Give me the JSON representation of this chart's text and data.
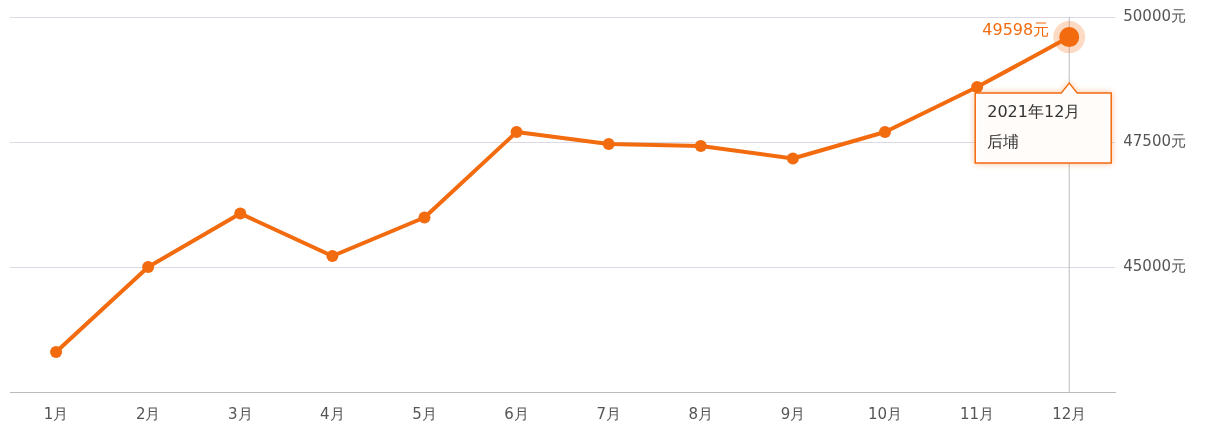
{
  "chart_data": {
    "type": "line",
    "categories": [
      "1月",
      "2月",
      "3月",
      "4月",
      "5月",
      "6月",
      "7月",
      "8月",
      "9月",
      "10月",
      "11月",
      "12月"
    ],
    "series": [
      {
        "name": "后埔",
        "color": "#f26b0f",
        "values": [
          43300,
          45000,
          46070,
          45220,
          45990,
          47700,
          47460,
          47420,
          47170,
          47700,
          48600,
          49598
        ],
        "value_labels": [
          null,
          null,
          null,
          null,
          null,
          null,
          null,
          null,
          null,
          null,
          null,
          "49598元"
        ]
      }
    ],
    "ylim": [
      42500,
      50000
    ],
    "yticks": [
      {
        "value": 45000,
        "label": "45000元"
      },
      {
        "value": 47500,
        "label": "47500元"
      },
      {
        "value": 50000,
        "label": "50000元"
      }
    ],
    "grid": "y",
    "legend": false,
    "marker": "circle",
    "line_style": "solid",
    "ref_lines": [
      {
        "axis": "x",
        "value": "12月",
        "color": "#bbbbbb"
      }
    ],
    "annotations": [
      "2021年12月"
    ]
  }
}
